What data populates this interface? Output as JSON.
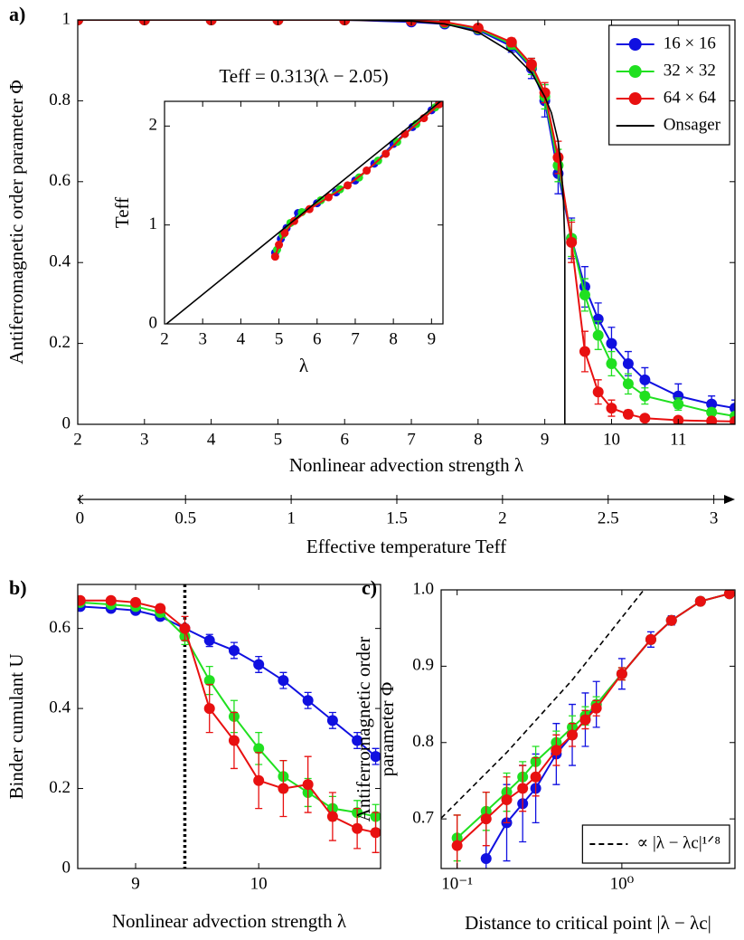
{
  "chart_data": [
    {
      "type": "line",
      "panel_label": "a)",
      "xlabel": "Nonlinear advection strength λ",
      "ylabel": "Antiferromagnetic order parameter Φ",
      "xlim": [
        2,
        11.85
      ],
      "ylim": [
        0,
        1
      ],
      "xticks": [
        2,
        3,
        4,
        5,
        6,
        7,
        8,
        9,
        10,
        11
      ],
      "yticks": [
        0,
        0.2,
        0.4,
        0.6,
        0.8,
        1
      ],
      "legend": "upper right",
      "series": [
        {
          "name": "16 × 16",
          "color": "#1010e0",
          "style": "markers",
          "x": [
            2,
            3,
            4,
            5,
            6,
            7,
            7.5,
            8,
            8.5,
            8.8,
            9,
            9.2,
            9.4,
            9.6,
            9.8,
            10,
            10.25,
            10.5,
            11,
            11.5,
            11.85
          ],
          "values": [
            1,
            1,
            1,
            1,
            1,
            0.995,
            0.99,
            0.975,
            0.935,
            0.88,
            0.8,
            0.62,
            0.46,
            0.34,
            0.26,
            0.2,
            0.15,
            0.11,
            0.07,
            0.05,
            0.04
          ],
          "errors": [
            0.002,
            0.002,
            0.002,
            0.002,
            0.003,
            0.004,
            0.006,
            0.01,
            0.015,
            0.025,
            0.04,
            0.05,
            0.05,
            0.05,
            0.04,
            0.04,
            0.03,
            0.03,
            0.03,
            0.02,
            0.02
          ]
        },
        {
          "name": "32 × 32",
          "color": "#20e020",
          "style": "markers",
          "x": [
            2,
            3,
            4,
            5,
            6,
            7,
            7.5,
            8,
            8.5,
            8.8,
            9,
            9.2,
            9.4,
            9.6,
            9.8,
            10,
            10.25,
            10.5,
            11,
            11.5,
            11.85
          ],
          "values": [
            1,
            1,
            1,
            1,
            1,
            0.998,
            0.993,
            0.978,
            0.94,
            0.885,
            0.81,
            0.64,
            0.46,
            0.32,
            0.22,
            0.15,
            0.1,
            0.07,
            0.05,
            0.03,
            0.02
          ],
          "errors": [
            0.001,
            0.001,
            0.001,
            0.001,
            0.002,
            0.003,
            0.005,
            0.008,
            0.012,
            0.02,
            0.03,
            0.04,
            0.045,
            0.04,
            0.035,
            0.03,
            0.025,
            0.02,
            0.015,
            0.01,
            0.01
          ]
        },
        {
          "name": "64 × 64",
          "color": "#e81010",
          "style": "markers",
          "x": [
            2,
            3,
            4,
            5,
            6,
            7,
            7.5,
            8,
            8.5,
            8.8,
            9,
            9.2,
            9.4,
            9.6,
            9.8,
            10,
            10.25,
            10.5,
            11,
            11.5,
            11.85
          ],
          "values": [
            1,
            1,
            1,
            1,
            1,
            0.998,
            0.995,
            0.98,
            0.945,
            0.89,
            0.82,
            0.66,
            0.45,
            0.18,
            0.08,
            0.04,
            0.025,
            0.015,
            0.01,
            0.008,
            0.007
          ],
          "errors": [
            0.001,
            0.001,
            0.001,
            0.001,
            0.001,
            0.002,
            0.004,
            0.006,
            0.01,
            0.015,
            0.025,
            0.04,
            0.05,
            0.05,
            0.03,
            0.02,
            0.01,
            0.008,
            0.005,
            0.004,
            0.004
          ]
        },
        {
          "name": "Onsager",
          "color": "#000000",
          "style": "line",
          "x": [
            2,
            6,
            7,
            7.5,
            8,
            8.5,
            8.8,
            9,
            9.1,
            9.2,
            9.25,
            9.28,
            9.3,
            9.3,
            11.85
          ],
          "values": [
            1,
            1,
            0.997,
            0.99,
            0.97,
            0.92,
            0.87,
            0.81,
            0.77,
            0.7,
            0.63,
            0.55,
            0.45,
            0,
            0
          ]
        }
      ]
    },
    {
      "type": "line",
      "title": "Teff = 0.313(λ − 2.05)",
      "xlabel": "λ",
      "ylabel": "Teff",
      "xlim": [
        2,
        9.3
      ],
      "ylim": [
        0,
        2.25
      ],
      "xticks": [
        2,
        3,
        4,
        5,
        6,
        7,
        8,
        9
      ],
      "yticks": [
        0,
        1,
        2
      ],
      "series": [
        {
          "color": "#1010e0",
          "style": "markers",
          "x": [
            4.9,
            5.05,
            5.2,
            5.5,
            6,
            6.5,
            7,
            7.5,
            8,
            8.5,
            9,
            9.2
          ],
          "values": [
            0.72,
            0.86,
            0.97,
            1.12,
            1.22,
            1.33,
            1.45,
            1.62,
            1.82,
            1.99,
            2.16,
            2.23
          ]
        },
        {
          "color": "#20e020",
          "style": "markers",
          "x": [
            4.95,
            5.1,
            5.3,
            5.6,
            6.1,
            6.6,
            7.1,
            7.6,
            8.1,
            8.6,
            9.1
          ],
          "values": [
            0.75,
            0.9,
            1.02,
            1.13,
            1.25,
            1.36,
            1.48,
            1.65,
            1.84,
            2.02,
            2.19
          ]
        },
        {
          "color": "#e81010",
          "style": "markers",
          "x": [
            4.9,
            5.0,
            5.15,
            5.4,
            5.8,
            6.3,
            6.8,
            7.3,
            7.8,
            8.3,
            8.8,
            9.2
          ],
          "values": [
            0.68,
            0.8,
            0.92,
            1.04,
            1.16,
            1.28,
            1.4,
            1.55,
            1.72,
            1.92,
            2.08,
            2.22
          ]
        },
        {
          "color": "#000000",
          "style": "line",
          "x": [
            2.05,
            9.3
          ],
          "values": [
            0,
            2.27
          ]
        }
      ]
    },
    {
      "type": "axis",
      "xlabel": "Effective temperature Teff",
      "xlim": [
        -0.01,
        3.1
      ],
      "xticks": [
        0,
        0.5,
        1,
        1.5,
        2,
        2.5,
        3
      ]
    },
    {
      "type": "line",
      "panel_label": "b)",
      "xlabel": "Nonlinear advection strength λ",
      "ylabel": "Binder cumulant U",
      "xlim": [
        8.53,
        10.99
      ],
      "ylim": [
        0,
        0.71
      ],
      "xticks": [
        9,
        10
      ],
      "yticks": [
        0,
        0.2,
        0.4,
        0.6
      ],
      "vline": 9.4,
      "series": [
        {
          "color": "#1010e0",
          "style": "markers",
          "x": [
            8.55,
            8.8,
            9.0,
            9.2,
            9.4,
            9.6,
            9.8,
            10.0,
            10.2,
            10.4,
            10.6,
            10.8,
            10.95
          ],
          "values": [
            0.655,
            0.65,
            0.645,
            0.63,
            0.6,
            0.57,
            0.545,
            0.51,
            0.47,
            0.42,
            0.37,
            0.32,
            0.28
          ],
          "errors": [
            0.005,
            0.005,
            0.006,
            0.008,
            0.01,
            0.015,
            0.02,
            0.02,
            0.02,
            0.02,
            0.02,
            0.02,
            0.02
          ]
        },
        {
          "color": "#20e020",
          "style": "markers",
          "x": [
            8.55,
            8.8,
            9.0,
            9.2,
            9.4,
            9.6,
            9.8,
            10.0,
            10.2,
            10.4,
            10.6,
            10.8,
            10.95
          ],
          "values": [
            0.665,
            0.66,
            0.655,
            0.64,
            0.58,
            0.47,
            0.38,
            0.3,
            0.23,
            0.19,
            0.15,
            0.14,
            0.13
          ],
          "errors": [
            0.004,
            0.004,
            0.005,
            0.008,
            0.02,
            0.035,
            0.04,
            0.04,
            0.04,
            0.035,
            0.03,
            0.03,
            0.03
          ]
        },
        {
          "color": "#e81010",
          "style": "markers",
          "x": [
            8.55,
            8.8,
            9.0,
            9.2,
            9.4,
            9.6,
            9.8,
            10.0,
            10.2,
            10.4,
            10.6,
            10.8,
            10.95
          ],
          "values": [
            0.67,
            0.67,
            0.665,
            0.65,
            0.6,
            0.4,
            0.32,
            0.22,
            0.2,
            0.21,
            0.13,
            0.1,
            0.09
          ],
          "errors": [
            0.004,
            0.004,
            0.005,
            0.01,
            0.03,
            0.06,
            0.07,
            0.07,
            0.07,
            0.07,
            0.06,
            0.05,
            0.05
          ]
        }
      ]
    },
    {
      "type": "line",
      "panel_label": "c)",
      "xlabel": "Distance to critical point |λ − λc|",
      "ylabel": [
        "Antiferromagnetic order",
        "parameter Φ"
      ],
      "xscale": "log",
      "xlim": [
        0.08,
        4.86
      ],
      "ylim": [
        0.635,
        1.0
      ],
      "xticks": [
        {
          "value": 0.1,
          "label": "10⁻¹"
        },
        {
          "value": 1,
          "label": "10⁰"
        }
      ],
      "yticks": [
        0.7,
        0.8,
        0.9,
        {
          "value": 1,
          "label": "1.0"
        }
      ],
      "legend": "lower right",
      "series": [
        {
          "color": "#1010e0",
          "style": "markers",
          "x": [
            0.1,
            0.15,
            0.2,
            0.25,
            0.3,
            0.4,
            0.5,
            0.6,
            0.7,
            1,
            1.5,
            2,
            3,
            4.5
          ],
          "values": [
            null,
            0.648,
            0.695,
            0.72,
            0.74,
            0.785,
            0.81,
            0.83,
            0.85,
            0.89,
            0.935,
            0.96,
            0.985,
            0.995
          ],
          "errors": [
            null,
            0.05,
            0.05,
            0.05,
            0.045,
            0.04,
            0.04,
            0.035,
            0.03,
            0.02,
            0.01,
            0.006,
            0.004,
            0.002
          ]
        },
        {
          "color": "#20e020",
          "style": "markers",
          "x": [
            0.1,
            0.15,
            0.2,
            0.25,
            0.3,
            0.4,
            0.5,
            0.6,
            0.7,
            1,
            1.5,
            2,
            3,
            4.5
          ],
          "values": [
            0.675,
            0.71,
            0.735,
            0.755,
            0.775,
            0.8,
            0.82,
            0.835,
            0.85,
            0.89,
            0.935,
            0.96,
            0.985,
            0.995
          ],
          "errors": [
            0.03,
            0.025,
            0.025,
            0.02,
            0.02,
            0.015,
            0.015,
            0.012,
            0.01,
            0.008,
            0.005,
            0.004,
            0.003,
            0.002
          ]
        },
        {
          "color": "#e81010",
          "style": "markers",
          "x": [
            0.1,
            0.15,
            0.2,
            0.25,
            0.3,
            0.4,
            0.5,
            0.6,
            0.7,
            1,
            1.5,
            2,
            3,
            4.5
          ],
          "values": [
            0.665,
            0.7,
            0.725,
            0.74,
            0.755,
            0.79,
            0.81,
            0.83,
            0.845,
            0.89,
            0.935,
            0.96,
            0.985,
            0.995
          ],
          "errors": [
            0.04,
            0.035,
            0.03,
            0.03,
            0.025,
            0.02,
            0.015,
            0.012,
            0.01,
            0.008,
            0.005,
            0.004,
            0.003,
            0.002
          ]
        },
        {
          "name": "∝ |λ − λc|¹ᐟ⁸",
          "color": "#000000",
          "style": "line",
          "dashed": true,
          "x": [
            0.08,
            0.2,
            0.5,
            1.36
          ],
          "values": [
            0.701,
            0.787,
            0.882,
            1.0
          ]
        }
      ]
    }
  ]
}
